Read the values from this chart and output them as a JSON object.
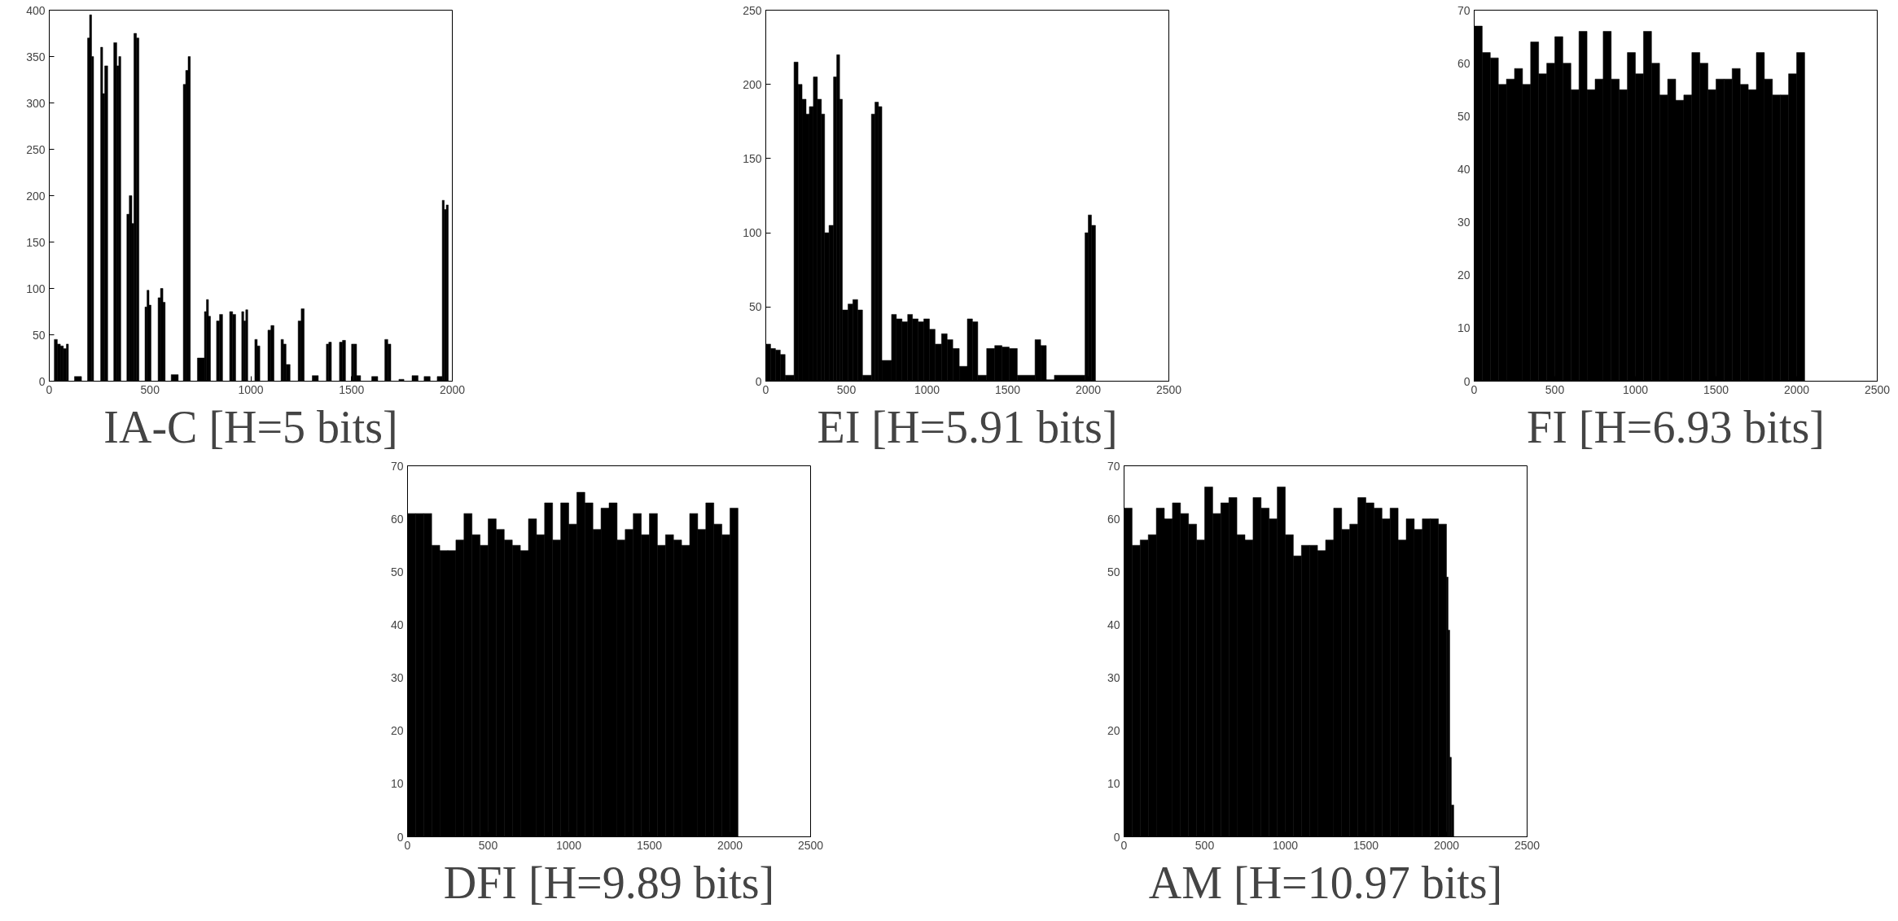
{
  "chart_data": [
    {
      "type": "histogram",
      "title": "IA-C [H=5 bits]",
      "color": "#000000",
      "xlim": [
        0,
        2000
      ],
      "xticks": [
        0,
        500,
        1000,
        1500,
        2000
      ],
      "ylim": [
        0,
        400
      ],
      "yticks": [
        0,
        50,
        100,
        150,
        200,
        250,
        300,
        350,
        400
      ],
      "bins": [
        0,
        25,
        40,
        55,
        70,
        85,
        95,
        125,
        160,
        190,
        200,
        210,
        220,
        255,
        265,
        275,
        290,
        320,
        335,
        345,
        355,
        385,
        397,
        410,
        420,
        433,
        445,
        475,
        485,
        495,
        505,
        540,
        552,
        564,
        575,
        605,
        640,
        665,
        677,
        689,
        700,
        735,
        770,
        780,
        790,
        800,
        830,
        845,
        860,
        895,
        910,
        925,
        955,
        965,
        975,
        985,
        1020,
        1032,
        1045,
        1085,
        1100,
        1115,
        1150,
        1162,
        1175,
        1195,
        1235,
        1250,
        1265,
        1305,
        1335,
        1375,
        1387,
        1400,
        1440,
        1455,
        1470,
        1500,
        1512,
        1525,
        1545,
        1600,
        1630,
        1665,
        1680,
        1695,
        1735,
        1760,
        1800,
        1830,
        1860,
        1890,
        1925,
        1950,
        1960,
        1970,
        1980
      ],
      "values": [
        0,
        45,
        40,
        38,
        35,
        40,
        0,
        5,
        0,
        370,
        395,
        350,
        0,
        360,
        310,
        340,
        0,
        365,
        340,
        350,
        0,
        180,
        200,
        170,
        375,
        370,
        0,
        80,
        98,
        82,
        0,
        90,
        100,
        85,
        0,
        7,
        0,
        320,
        335,
        350,
        0,
        25,
        75,
        88,
        70,
        0,
        65,
        72,
        0,
        75,
        72,
        0,
        75,
        65,
        77,
        0,
        45,
        38,
        0,
        55,
        60,
        0,
        45,
        40,
        18,
        0,
        65,
        78,
        0,
        6,
        0,
        40,
        42,
        0,
        42,
        44,
        0,
        40,
        40,
        6,
        0,
        5,
        0,
        45,
        40,
        0,
        2,
        0,
        6,
        0,
        5,
        0,
        5,
        195,
        185,
        190
      ]
    },
    {
      "type": "histogram",
      "title": "EI [H=5.91 bits]",
      "color": "#000000",
      "xlim": [
        0,
        2500
      ],
      "xticks": [
        0,
        500,
        1000,
        1500,
        2000,
        2500
      ],
      "ylim": [
        0,
        250
      ],
      "yticks": [
        0,
        50,
        100,
        150,
        200,
        250
      ],
      "bins": [
        0,
        30,
        60,
        90,
        120,
        175,
        200,
        225,
        250,
        270,
        295,
        320,
        345,
        365,
        392,
        420,
        440,
        458,
        475,
        510,
        540,
        570,
        600,
        655,
        677,
        699,
        720,
        780,
        810,
        845,
        880,
        910,
        945,
        980,
        1015,
        1050,
        1090,
        1125,
        1160,
        1200,
        1250,
        1282,
        1315,
        1370,
        1420,
        1465,
        1510,
        1560,
        1670,
        1705,
        1740,
        1790,
        1980,
        2000,
        2020,
        2045
      ],
      "values": [
        25,
        22,
        21,
        18,
        4,
        215,
        200,
        190,
        180,
        185,
        205,
        190,
        180,
        100,
        105,
        205,
        220,
        190,
        48,
        52,
        55,
        48,
        4,
        180,
        188,
        185,
        14,
        45,
        42,
        40,
        45,
        42,
        40,
        42,
        35,
        25,
        32,
        28,
        22,
        10,
        42,
        40,
        4,
        22,
        24,
        23,
        22,
        4,
        28,
        24,
        1,
        4,
        100,
        112,
        105
      ]
    },
    {
      "type": "histogram",
      "title": "FI [H=6.93 bits]",
      "color": "#000000",
      "xlim": [
        0,
        2500
      ],
      "xticks": [
        0,
        500,
        1000,
        1500,
        2000,
        2500
      ],
      "ylim": [
        0,
        70
      ],
      "yticks": [
        0,
        10,
        20,
        30,
        40,
        50,
        60,
        70
      ],
      "bins": [
        0,
        50,
        100,
        150,
        200,
        250,
        300,
        350,
        400,
        450,
        500,
        550,
        600,
        650,
        700,
        750,
        800,
        850,
        900,
        950,
        1000,
        1050,
        1100,
        1150,
        1200,
        1250,
        1300,
        1350,
        1400,
        1450,
        1500,
        1550,
        1600,
        1650,
        1700,
        1750,
        1800,
        1850,
        1900,
        1950,
        2000,
        2050
      ],
      "values": [
        67,
        62,
        61,
        56,
        57,
        59,
        56,
        64,
        58,
        60,
        65,
        60,
        55,
        66,
        55,
        57,
        66,
        57,
        55,
        62,
        58,
        66,
        60,
        54,
        57,
        53,
        54,
        62,
        60,
        55,
        57,
        57,
        59,
        56,
        55,
        62,
        57,
        54,
        54,
        58,
        62
      ]
    },
    {
      "type": "histogram",
      "title": "DFI [H=9.89 bits]",
      "color": "#000000",
      "xlim": [
        0,
        2500
      ],
      "xticks": [
        0,
        500,
        1000,
        1500,
        2000,
        2500
      ],
      "ylim": [
        0,
        70
      ],
      "yticks": [
        0,
        10,
        20,
        30,
        40,
        50,
        60,
        70
      ],
      "bins": [
        0,
        50,
        100,
        150,
        200,
        250,
        300,
        350,
        400,
        450,
        500,
        550,
        600,
        650,
        700,
        750,
        800,
        850,
        900,
        950,
        1000,
        1050,
        1100,
        1150,
        1200,
        1250,
        1300,
        1350,
        1400,
        1450,
        1500,
        1550,
        1600,
        1650,
        1700,
        1750,
        1800,
        1850,
        1900,
        1950,
        2000,
        2050
      ],
      "values": [
        61,
        61,
        61,
        55,
        54,
        54,
        56,
        61,
        57,
        55,
        60,
        58,
        56,
        55,
        54,
        60,
        57,
        63,
        56,
        63,
        59,
        65,
        63,
        58,
        62,
        63,
        56,
        58,
        61,
        57,
        61,
        55,
        57,
        56,
        55,
        61,
        58,
        63,
        59,
        57,
        62
      ]
    },
    {
      "type": "histogram",
      "title": "AM [H=10.97 bits]",
      "color": "#000000",
      "xlim": [
        0,
        2500
      ],
      "xticks": [
        0,
        500,
        1000,
        1500,
        2000,
        2500
      ],
      "ylim": [
        0,
        70
      ],
      "yticks": [
        0,
        10,
        20,
        30,
        40,
        50,
        60,
        70
      ],
      "bins": [
        0,
        50,
        100,
        150,
        200,
        250,
        300,
        350,
        400,
        450,
        500,
        550,
        600,
        650,
        700,
        750,
        800,
        850,
        900,
        950,
        1000,
        1050,
        1100,
        1150,
        1200,
        1250,
        1300,
        1350,
        1400,
        1450,
        1500,
        1550,
        1600,
        1650,
        1700,
        1750,
        1800,
        1850,
        1900,
        1950,
        2000,
        2010,
        2020,
        2030,
        2045
      ],
      "values": [
        62,
        55,
        56,
        57,
        62,
        60,
        63,
        61,
        59,
        56,
        66,
        61,
        63,
        64,
        57,
        56,
        64,
        62,
        60,
        66,
        57,
        53,
        55,
        55,
        54,
        56,
        62,
        58,
        59,
        64,
        63,
        62,
        60,
        62,
        56,
        60,
        58,
        60,
        60,
        59,
        49,
        39,
        15,
        6
      ]
    }
  ]
}
